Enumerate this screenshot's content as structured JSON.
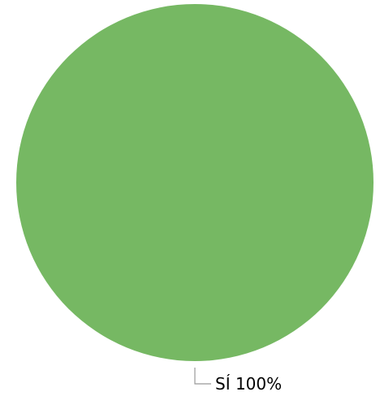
{
  "chart_data": {
    "type": "pie",
    "title": "",
    "slices": [
      {
        "label": "SÍ",
        "value": 100,
        "percent_label": "100%",
        "color": "#76b863"
      }
    ],
    "legend": "none",
    "data_labels": [
      "SÍ 100%"
    ],
    "leader_line_color": "#999999"
  }
}
